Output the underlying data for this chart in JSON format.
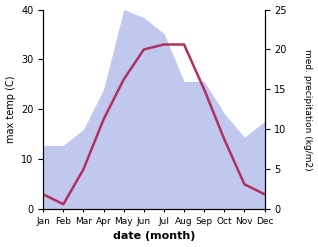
{
  "months": [
    "Jan",
    "Feb",
    "Mar",
    "Apr",
    "May",
    "Jun",
    "Jul",
    "Aug",
    "Sep",
    "Oct",
    "Nov",
    "Dec"
  ],
  "temperature": [
    3,
    1,
    8,
    18,
    26,
    32,
    33,
    33,
    24,
    14,
    5,
    3
  ],
  "precipitation": [
    8,
    8,
    10,
    15,
    25,
    24,
    22,
    16,
    16,
    12,
    9,
    11
  ],
  "temp_ylim": [
    0,
    40
  ],
  "precip_ylim": [
    0,
    25
  ],
  "temp_color": "#b03060",
  "precip_fill_color": "#c0c8ee",
  "xlabel": "date (month)",
  "ylabel_left": "max temp (C)",
  "ylabel_right": "med. precipitation (kg/m2)",
  "temp_yticks": [
    0,
    10,
    20,
    30,
    40
  ],
  "precip_yticks": [
    0,
    5,
    10,
    15,
    20,
    25
  ],
  "precip_ytick_positions": [
    0,
    8,
    16,
    24,
    32,
    40
  ]
}
